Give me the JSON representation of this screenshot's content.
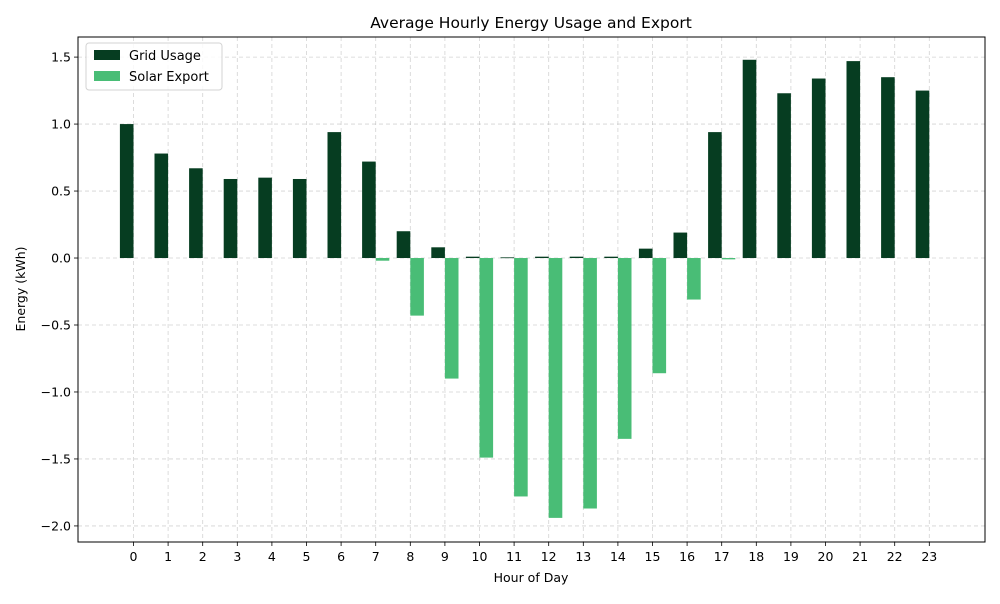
{
  "chart_data": {
    "type": "bar",
    "title": "Average Hourly Energy Usage and Export",
    "xlabel": "Hour of Day",
    "ylabel": "Energy (kWh)",
    "categories": [
      "0",
      "1",
      "2",
      "3",
      "4",
      "5",
      "6",
      "7",
      "8",
      "9",
      "10",
      "11",
      "12",
      "13",
      "14",
      "15",
      "16",
      "17",
      "18",
      "19",
      "20",
      "21",
      "22",
      "23"
    ],
    "series": [
      {
        "name": "Grid Usage",
        "color": "#063d21",
        "values": [
          1.0,
          0.78,
          0.67,
          0.59,
          0.6,
          0.59,
          0.94,
          0.72,
          0.2,
          0.08,
          0.01,
          0.005,
          0.01,
          0.01,
          0.01,
          0.07,
          0.19,
          0.94,
          1.48,
          1.23,
          1.34,
          1.47,
          1.35,
          1.25
        ]
      },
      {
        "name": "Solar Export",
        "color": "#49bd76",
        "values": [
          0,
          0,
          0,
          0,
          0,
          0,
          0,
          -0.02,
          -0.43,
          -0.9,
          -1.49,
          -1.78,
          -1.94,
          -1.87,
          -1.35,
          -0.86,
          -0.31,
          -0.01,
          0,
          0,
          0,
          0,
          0,
          0
        ]
      }
    ],
    "ylim": [
      -2.12,
      1.65
    ],
    "yticks": [
      -2.0,
      -1.5,
      -1.0,
      -0.5,
      0.0,
      0.5,
      1.0,
      1.5
    ],
    "ytick_labels": [
      "−2.0",
      "−1.5",
      "−1.0",
      "−0.5",
      "0.0",
      "0.5",
      "1.0",
      "1.5"
    ],
    "grid": true,
    "legend_position": "top-left"
  }
}
